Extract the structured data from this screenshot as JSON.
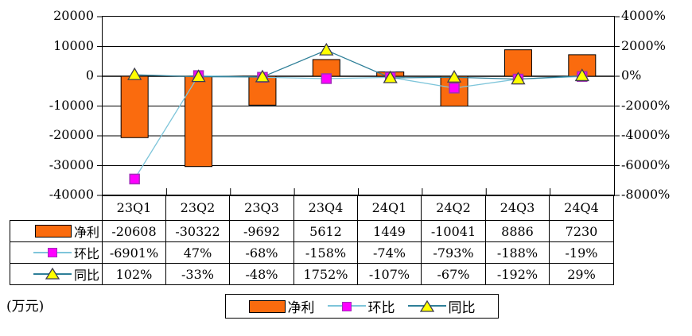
{
  "unit_label": "(万元)",
  "colors": {
    "bar_fill": "#FA6B0E",
    "bar_border": "#000000",
    "qoq_line": "#7EC5DA",
    "qoq_marker_fill": "#FF00FF",
    "qoq_marker_border": "#A030B8",
    "yoy_line": "#2E7F98",
    "yoy_marker_fill": "#FFFF00",
    "yoy_marker_border": "#3C3C50",
    "axis": "#000000",
    "background": "#FFFFFF"
  },
  "chart_data": {
    "type": "combo-bar-line",
    "categories": [
      "23Q1",
      "23Q2",
      "23Q3",
      "23Q4",
      "24Q1",
      "24Q2",
      "24Q3",
      "24Q4"
    ],
    "series": [
      {
        "name": "净利",
        "type": "bar",
        "axis": "left",
        "values": [
          -20608,
          -30322,
          -9692,
          5612,
          1449,
          -10041,
          8886,
          7230
        ]
      },
      {
        "name": "环比",
        "type": "line",
        "axis": "right",
        "marker": "square",
        "values": [
          -6901,
          47,
          -68,
          -158,
          -74,
          -793,
          -188,
          -19
        ],
        "labels": [
          "-6901%",
          "47%",
          "-68%",
          "-158%",
          "-74%",
          "-793%",
          "-188%",
          "-19%"
        ]
      },
      {
        "name": "同比",
        "type": "line",
        "axis": "right",
        "marker": "triangle",
        "values": [
          102,
          -33,
          -48,
          1752,
          -107,
          -67,
          -192,
          29
        ],
        "labels": [
          "102%",
          "-33%",
          "-48%",
          "1752%",
          "-107%",
          "-67%",
          "-192%",
          "29%"
        ]
      }
    ],
    "left_axis": {
      "min": -40000,
      "max": 20000,
      "ticks": [
        "20000",
        "10000",
        "0",
        "-10000",
        "-20000",
        "-30000",
        "-40000"
      ]
    },
    "right_axis": {
      "min": -8000,
      "max": 4000,
      "ticks": [
        "4000%",
        "2000%",
        "0%",
        "-2000%",
        "-4000%",
        "-6000%",
        "-8000%"
      ]
    },
    "grid": true,
    "legend_position": "bottom",
    "unit": "万元"
  },
  "table": {
    "header": [
      "23Q1",
      "23Q2",
      "23Q3",
      "23Q4",
      "24Q1",
      "24Q2",
      "24Q3",
      "24Q4"
    ],
    "rows": [
      {
        "label": "净利",
        "values": [
          "-20608",
          "-30322",
          "-9692",
          "5612",
          "1449",
          "-10041",
          "8886",
          "7230"
        ]
      },
      {
        "label": "环比",
        "values": [
          "-6901%",
          "47%",
          "-68%",
          "-158%",
          "-74%",
          "-793%",
          "-188%",
          "-19%"
        ]
      },
      {
        "label": "同比",
        "values": [
          "102%",
          "-33%",
          "-48%",
          "1752%",
          "-107%",
          "-67%",
          "-192%",
          "29%"
        ]
      }
    ]
  },
  "legend": {
    "items": [
      "净利",
      "环比",
      "同比"
    ]
  }
}
